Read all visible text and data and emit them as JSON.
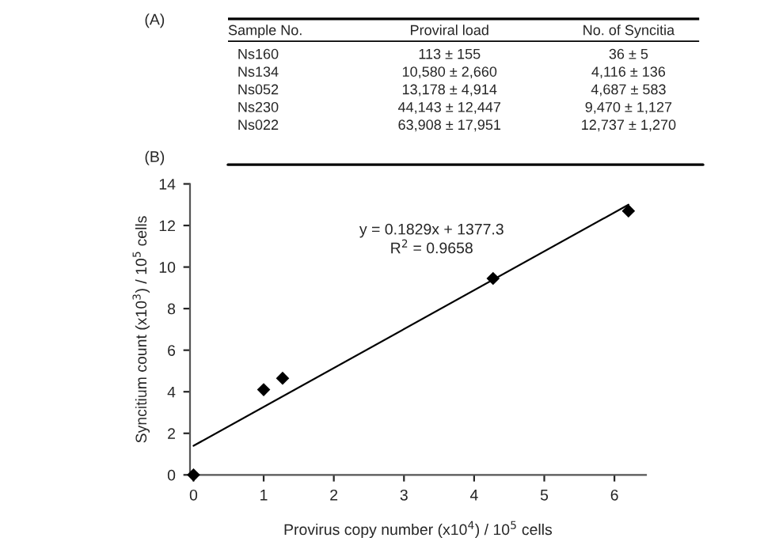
{
  "chart_data": [
    {
      "type": "other",
      "title": "(A)",
      "annotations": [
        "Sample No.",
        "Proviral load",
        "No. of Syncitia",
        "Ns160",
        "113 ± 155",
        "36 ± 5",
        "Ns134",
        "10,580 ± 2,660",
        "4,116 ± 136",
        "Ns052",
        "13,178 ± 4,914",
        "4,687 ± 583",
        "Ns230",
        "44,143 ± 12,447",
        "9,470 ± 1,127",
        "Ns022",
        "63,908 ± 17,951",
        "12,737 ± 1,270"
      ]
    },
    {
      "type": "scatter",
      "title": "(B)",
      "xlabel": "Provirus copy number (x10$^{4}$) / 10$^{5}$ cells",
      "ylabel": "Syncitium count (x10$^{3}$) / 10$^{5}$ cells",
      "xlim": [
        -0.05,
        6.45
      ],
      "xticks": [
        0,
        1,
        2,
        3,
        4,
        5,
        6
      ],
      "ylim": [
        0,
        14
      ],
      "yticks": [
        0,
        2,
        4,
        6,
        8,
        10,
        12,
        14
      ],
      "grid": false,
      "annotations": [
        "y = 0.1829x + 1377.3",
        "R$^{2}$ = 0.9658"
      ],
      "series": [
        {
          "type": "scatter",
          "marker": "diamond",
          "color": "#000000",
          "x": [
            0,
            1.0,
            1.27,
            4.27,
            6.2
          ],
          "values": [
            0,
            4.1,
            4.65,
            9.45,
            12.7
          ]
        },
        {
          "type": "line",
          "marker": "none",
          "color": "#000000",
          "x": [
            0,
            6.2
          ],
          "values": [
            1.4,
            13.0
          ]
        }
      ]
    }
  ]
}
